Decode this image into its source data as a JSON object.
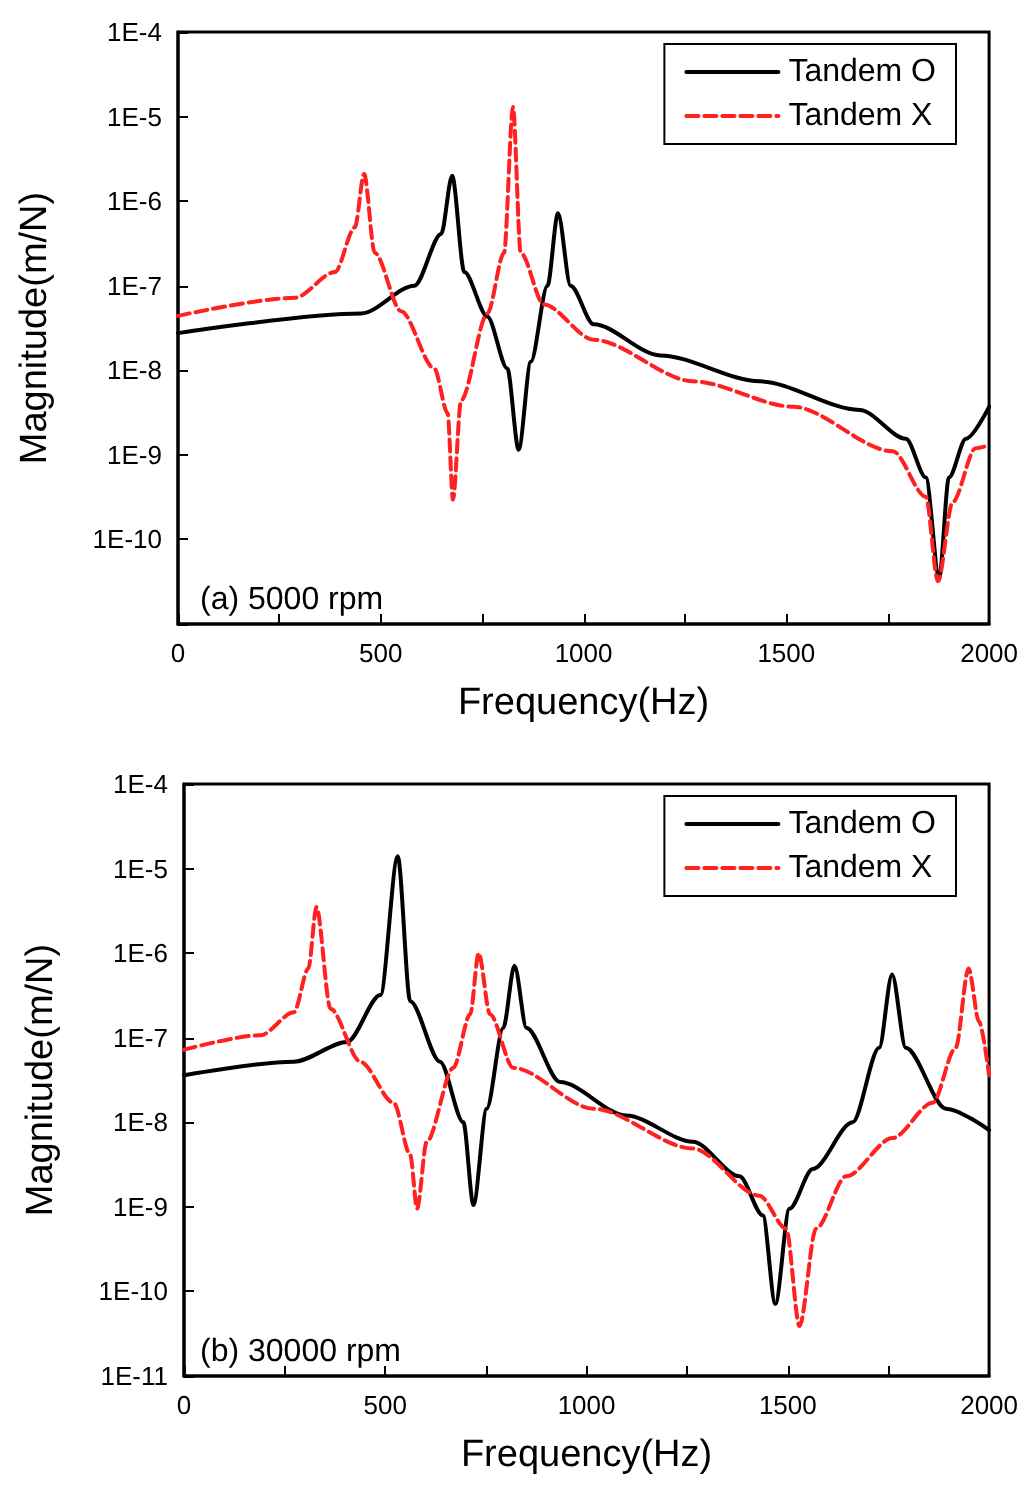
{
  "chart_data": [
    {
      "type": "line",
      "xlabel": "Frequency(Hz)",
      "ylabel": "Magnitude(m/N)",
      "annotations": [
        "(a) 5000 rpm"
      ],
      "log": "y",
      "legend": "top right",
      "grid": false,
      "xlim": [
        0,
        2000
      ],
      "xticks": [
        0,
        {
          "value": 250,
          "label": null
        },
        500,
        {
          "value": 750,
          "label": null
        },
        1000,
        {
          "value": 1250,
          "label": null
        },
        1500,
        {
          "value": 1750,
          "label": null
        },
        2000
      ],
      "ylim": [
        1e-11,
        0.0001
      ],
      "yticks": [
        {
          "value": 1e-11,
          "label": null
        },
        {
          "value": 1e-10,
          "label": "1E-10"
        },
        {
          "value": 1e-09,
          "label": "1E-9"
        },
        {
          "value": 1e-08,
          "label": "1E-8"
        },
        {
          "value": 1e-07,
          "label": "1E-7"
        },
        {
          "value": 1e-06,
          "label": "1E-6"
        },
        {
          "value": 1e-05,
          "label": "1E-5"
        },
        {
          "value": 0.0001,
          "label": "1E-4"
        }
      ],
      "series": [
        {
          "name": "Tandem O",
          "color": "#000000",
          "line_style": "solid",
          "x": [
            0,
            452,
            583,
            649,
            676,
            706,
            763,
            812,
            840,
            870,
            911,
            937,
            968,
            1025,
            1189,
            1435,
            1681,
            1795,
            1844,
            1877,
            1901,
            1943,
            2000
          ],
          "values": [
            2.75e-08,
            4.7e-08,
            1e-07,
            4.1e-07,
            2e-06,
            1.45e-07,
            4.3e-08,
            1.05e-08,
            1.15e-09,
            1.26e-08,
            1e-07,
            7.2e-07,
            1e-07,
            3.5e-08,
            1.5e-08,
            7.4e-09,
            3.4e-09,
            1.55e-09,
            5.4e-10,
            3.5e-11,
            5.4e-10,
            1.55e-09,
            3.7e-09
          ]
        },
        {
          "name": "Tandem X",
          "color": "#ff2020",
          "line_style": "dashed",
          "x": [
            0,
            288,
            387,
            436,
            459,
            485,
            550,
            632,
            665,
            678,
            698,
            763,
            804,
            826,
            845,
            902,
            1025,
            1271,
            1517,
            1763,
            1844,
            1874,
            1910,
            1967,
            2000
          ],
          "values": [
            4.4e-08,
            7.2e-08,
            1.45e-07,
            4.9e-07,
            2.1e-06,
            2.45e-07,
            5e-08,
            1.05e-08,
            3.1e-09,
            2.95e-10,
            4.4e-09,
            4.7e-08,
            2.45e-07,
            1.3e-05,
            2.45e-07,
            6e-08,
            2.3e-08,
            7.4e-09,
            3.7e-09,
            1.1e-09,
            3.2e-10,
            3.2e-11,
            2.75e-10,
            1.2e-09,
            1.3e-09
          ]
        }
      ]
    },
    {
      "type": "line",
      "xlabel": "Frequency(Hz)",
      "ylabel": "Magnitude(m/N)",
      "annotations": [
        "(b) 30000 rpm"
      ],
      "log": "y",
      "legend": "top right",
      "grid": false,
      "xlim": [
        0,
        2000
      ],
      "xticks": [
        0,
        {
          "value": 250,
          "label": null
        },
        500,
        {
          "value": 750,
          "label": null
        },
        1000,
        {
          "value": 1250,
          "label": null
        },
        1500,
        {
          "value": 1750,
          "label": null
        },
        2000
      ],
      "ylim": [
        1e-11,
        0.0001
      ],
      "yticks": [
        {
          "value": 1e-11,
          "label": "1E-11"
        },
        {
          "value": 1e-10,
          "label": "1E-10"
        },
        {
          "value": 1e-09,
          "label": "1E-9"
        },
        {
          "value": 1e-08,
          "label": "1E-8"
        },
        {
          "value": 1e-07,
          "label": "1E-7"
        },
        {
          "value": 1e-06,
          "label": "1E-6"
        },
        {
          "value": 1e-05,
          "label": "1E-5"
        },
        {
          "value": 0.0001,
          "label": "1E-4"
        }
      ],
      "series": [
        {
          "name": "Tandem O",
          "color": "#000000",
          "line_style": "solid",
          "x": [
            0,
            273,
            405,
            488,
            531,
            562,
            636,
            694,
            719,
            752,
            793,
            821,
            851,
            934,
            1099,
            1264,
            1380,
            1438,
            1469,
            1504,
            1562,
            1661,
            1727,
            1759,
            1793,
            1893,
            2000
          ],
          "values": [
            3.6e-08,
            5.2e-08,
            8.9e-08,
            3.2e-07,
            1.4e-05,
            2.7e-07,
            5.2e-08,
            1e-08,
            1.05e-09,
            1.45e-08,
            1.3e-07,
            7.1e-07,
            1.3e-07,
            3e-08,
            1.2e-08,
            5.9e-09,
            2.3e-09,
            7.9e-10,
            7.1e-11,
            9.5e-10,
            2.8e-09,
            1e-08,
            7.6e-08,
            5.6e-07,
            7.6e-08,
            1.45e-08,
            8.1e-09
          ]
        },
        {
          "name": "Tandem X",
          "color": "#ff2020",
          "line_style": "dashed",
          "x": [
            0,
            190,
            273,
            309,
            329,
            364,
            438,
            521,
            562,
            579,
            603,
            669,
            711,
            732,
            760,
            818,
            1017,
            1264,
            1430,
            1496,
            1529,
            1570,
            1645,
            1760,
            1860,
            1917,
            1949,
            1975,
            2000
          ],
          "values": [
            7.2e-08,
            1.07e-07,
            2e-07,
            6.6e-07,
            3.5e-06,
            2.2e-07,
            5.2e-08,
            1.7e-08,
            4.1e-09,
            9.5e-10,
            5.9e-09,
            4.4e-08,
            1.9e-07,
            1e-06,
            1.9e-07,
            4.4e-08,
            1.45e-08,
            4.9e-09,
            1.35e-09,
            5.5e-10,
            3.9e-11,
            5.5e-10,
            2.3e-09,
            6.5e-09,
            1.7e-08,
            7.6e-08,
            6.6e-07,
            1.55e-07,
            3.6e-08
          ]
        }
      ]
    }
  ]
}
